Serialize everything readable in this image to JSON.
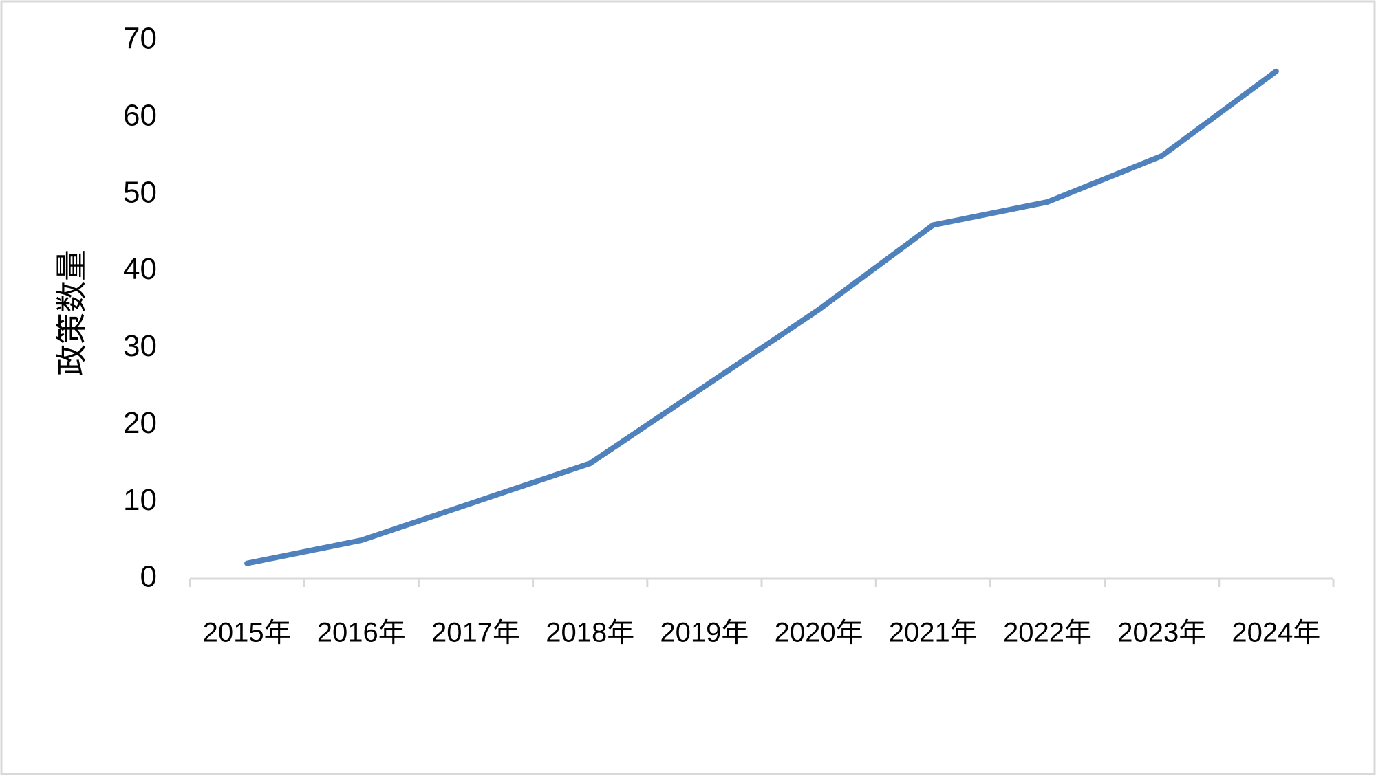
{
  "chart_data": {
    "type": "line",
    "y_label": "政策数量",
    "categories": [
      "2015年",
      "2016年",
      "2017年",
      "2018年",
      "2019年",
      "2020年",
      "2021年",
      "2022年",
      "2023年",
      "2024年"
    ],
    "series": [
      {
        "name": "政策数量",
        "color": "#4f81bd",
        "values": [
          2,
          5,
          10,
          15,
          25,
          35,
          46,
          49,
          55,
          66
        ]
      }
    ],
    "ylim": [
      0,
      70
    ],
    "yticks": [
      0,
      10,
      20,
      30,
      40,
      50,
      60,
      70
    ],
    "grid": false,
    "legend": false
  }
}
